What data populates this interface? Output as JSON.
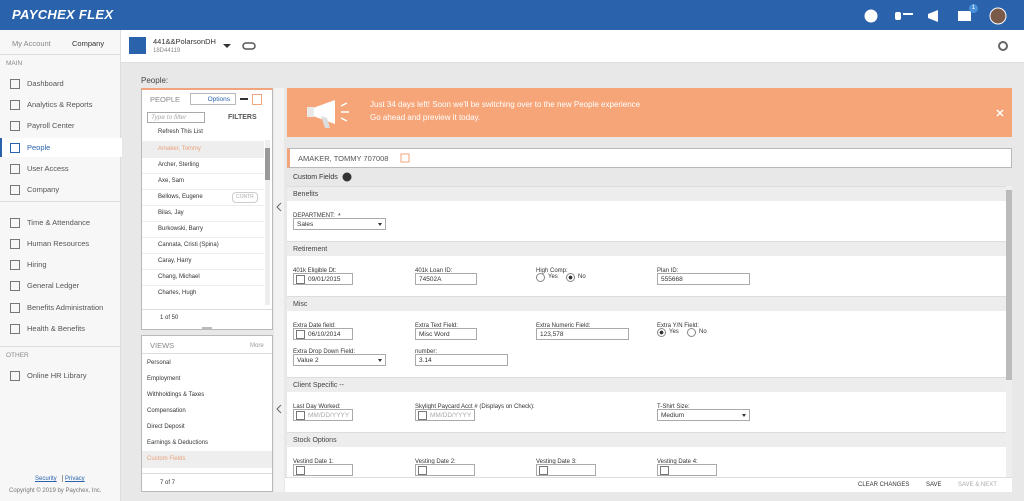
{
  "header": {
    "logo": "PAYCHEX FLEX",
    "notification_count": "1"
  },
  "account_tabs": [
    "My Account",
    "Company"
  ],
  "nav": {
    "main_label": "MAIN",
    "main": [
      "Dashboard",
      "Analytics & Reports",
      "Payroll Center",
      "People",
      "User Access",
      "Company",
      "Time & Attendance",
      "Human Resources",
      "Hiring",
      "General Ledger",
      "Benefits Administration",
      "Health & Benefits"
    ],
    "active": "People",
    "other_label": "OTHER",
    "other": [
      "Online HR Library"
    ]
  },
  "footer": {
    "links": [
      "Security",
      "Privacy"
    ],
    "copyright": "Copyright © 2019 by Paychex, Inc."
  },
  "company": {
    "name": "441&&PolarsonDH",
    "id": "18D44119"
  },
  "page_title": "People:",
  "people_panel": {
    "title": "PEOPLE",
    "options": "Options",
    "filter_placeholder": "Type to filter",
    "filters": "FILTERS",
    "refresh": "Refresh This List",
    "people": [
      "Amaker, Tommy",
      "Archer, Sterling",
      "Axe, Sam",
      "Bellows, Eugene",
      "Bilas, Jay",
      "Burkowski, Barry",
      "Cannata, Cristi (Spina)",
      "Caray, Harry",
      "Chang, Michael",
      "Charles, Hugh"
    ],
    "selected": "Amaker, Tommy",
    "tagged": "Bellows, Eugene",
    "tag": "CONTR",
    "pager": "1 of 50"
  },
  "views_panel": {
    "title": "VIEWS",
    "more": "More",
    "views": [
      "Personal",
      "Employment",
      "Withholdings & Taxes",
      "Compensation",
      "Direct Deposit",
      "Earnings & Deductions",
      "Custom Fields"
    ],
    "selected": "Custom Fields",
    "pager": "7 of 7"
  },
  "banner": {
    "lines": [
      "Just 34 days left! Soon we'll be switching over to the new People experience",
      "Go ahead and preview it today."
    ]
  },
  "employee": "AMAKER, TOMMY 707008",
  "form_title": "Custom Fields",
  "sections": [
    {
      "title": "Benefits",
      "fields": [
        {
          "label": "DEPARTMENT:",
          "required": "*",
          "type": "select",
          "value": "Sales"
        }
      ]
    },
    {
      "title": "Retirement",
      "fields": [
        {
          "label": "401k Eligible Dt:",
          "type": "date",
          "value": "09/01/2015"
        },
        {
          "label": "401k Loan ID:",
          "type": "text",
          "value": "74502A"
        },
        {
          "label": "High Comp:",
          "type": "radio",
          "options": [
            "Yes",
            "No"
          ],
          "selected": "No"
        },
        {
          "label": "Plan ID:",
          "type": "text",
          "value": "555668"
        }
      ]
    },
    {
      "title": "Misc",
      "fields": [
        {
          "label": "Extra Date field:",
          "type": "date",
          "value": "06/10/2014"
        },
        {
          "label": "Extra Text Field:",
          "type": "text",
          "value": "Misc Word"
        },
        {
          "label": "Extra Numeric Field:",
          "type": "text",
          "value": "123,578"
        },
        {
          "label": "Extra Y/N Field:",
          "type": "radio",
          "options": [
            "Yes",
            "No"
          ],
          "selected": "Yes"
        },
        {
          "label": "Extra Drop Down Field:",
          "type": "select",
          "value": "Value 2"
        },
        {
          "label": "number:",
          "type": "text",
          "value": "3.14"
        }
      ]
    },
    {
      "title": "Client Specific --",
      "fields": [
        {
          "label": "Last Day Worked:",
          "type": "date",
          "placeholder": "MM/DD/YYYY"
        },
        {
          "label": "Skylight Paycard Acct # (Displays on Check):",
          "type": "date",
          "placeholder": "MM/DD/YYYY"
        },
        {
          "label": "T-Shirt Size:",
          "type": "select",
          "value": "Medium"
        }
      ]
    },
    {
      "title": "Stock Options",
      "fields": [
        {
          "label": "Vestind Date 1:",
          "type": "date"
        },
        {
          "label": "Vesting Date 2:",
          "type": "date"
        },
        {
          "label": "Vesting Date 3:",
          "type": "date"
        },
        {
          "label": "Vesting Date 4:",
          "type": "date"
        }
      ]
    }
  ],
  "actions": [
    "CLEAR CHANGES",
    "SAVE",
    "SAVE & NEXT"
  ],
  "disabled_action": "SAVE & NEXT"
}
